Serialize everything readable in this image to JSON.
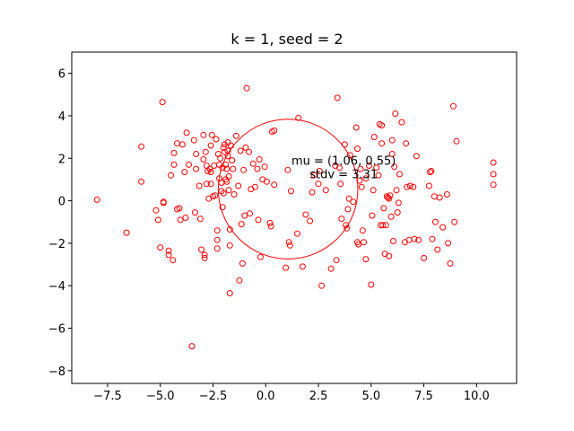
{
  "chart_data": {
    "type": "scatter",
    "title": "k = 1, seed = 2",
    "xlabel": "",
    "ylabel": "",
    "xlim": [
      -9.2,
      11.9
    ],
    "ylim": [
      -8.6,
      7.0
    ],
    "xticks": [
      -7.5,
      -5.0,
      -2.5,
      0.0,
      2.5,
      5.0,
      7.5,
      10.0
    ],
    "xtick_labels": [
      "−7.5",
      "−5.0",
      "−2.5",
      "0.0",
      "2.5",
      "5.0",
      "7.5",
      "10.0"
    ],
    "yticks": [
      -8,
      -6,
      -4,
      -2,
      0,
      2,
      4,
      6
    ],
    "ytick_labels": [
      "−8",
      "−6",
      "−4",
      "−2",
      "0",
      "2",
      "4",
      "6"
    ],
    "grid": false,
    "marker_color": "#ff0000",
    "annotation": {
      "line1": "mu = (1.06, 0.55)",
      "line2": "stdv = 3.31",
      "x": 1.06,
      "y": 0.55
    },
    "circle": {
      "cx": 1.06,
      "cy": 0.55,
      "r": 3.31,
      "color": "#ff0000"
    },
    "points": [
      [
        -8.0,
        0.05
      ],
      [
        -6.6,
        -1.5
      ],
      [
        -5.9,
        2.55
      ],
      [
        -5.9,
        0.9
      ],
      [
        -5.2,
        -0.45
      ],
      [
        -5.1,
        -0.9
      ],
      [
        -5.0,
        -2.2
      ],
      [
        -4.9,
        4.65
      ],
      [
        -4.85,
        -0.05
      ],
      [
        -4.85,
        -0.1
      ],
      [
        -4.6,
        -2.35
      ],
      [
        -4.6,
        -2.55
      ],
      [
        -4.5,
        1.2
      ],
      [
        -4.4,
        -2.8
      ],
      [
        -4.35,
        1.7
      ],
      [
        -4.35,
        2.25
      ],
      [
        -4.2,
        2.7
      ],
      [
        -4.2,
        -0.4
      ],
      [
        -4.1,
        -0.35
      ],
      [
        -4.05,
        -0.9
      ],
      [
        -3.95,
        2.65
      ],
      [
        -3.85,
        1.35
      ],
      [
        -3.8,
        -0.8
      ],
      [
        -3.75,
        3.2
      ],
      [
        -3.65,
        1.7
      ],
      [
        -3.5,
        -6.85
      ],
      [
        -3.4,
        2.85
      ],
      [
        -3.35,
        -0.55
      ],
      [
        -3.3,
        1.5
      ],
      [
        -3.3,
        2.2
      ],
      [
        -3.15,
        0.7
      ],
      [
        -3.1,
        -0.85
      ],
      [
        -3.05,
        -2.3
      ],
      [
        -2.95,
        3.1
      ],
      [
        -2.95,
        1.95
      ],
      [
        -2.9,
        -2.55
      ],
      [
        -2.9,
        -2.7
      ],
      [
        -2.85,
        2.3
      ],
      [
        -2.8,
        1.65
      ],
      [
        -2.8,
        0.8
      ],
      [
        -2.75,
        1.4
      ],
      [
        -2.7,
        0.1
      ],
      [
        -2.65,
        1.5
      ],
      [
        -2.6,
        2.6
      ],
      [
        -2.6,
        1.35
      ],
      [
        -2.6,
        0.8
      ],
      [
        -2.55,
        3.1
      ],
      [
        -2.5,
        0.2
      ],
      [
        -2.45,
        1.65
      ],
      [
        -2.4,
        0.25
      ],
      [
        -2.35,
        2.9
      ],
      [
        -2.3,
        -1.4
      ],
      [
        -2.3,
        -1.85
      ],
      [
        -2.3,
        -2.25
      ],
      [
        -2.25,
        2.2
      ],
      [
        -2.2,
        1.7
      ],
      [
        -2.2,
        1.05
      ],
      [
        -2.15,
        2.0
      ],
      [
        -2.1,
        0.85
      ],
      [
        -2.1,
        0.45
      ],
      [
        -2.05,
        1.55
      ],
      [
        -2.05,
        -0.3
      ],
      [
        -2.0,
        2.5
      ],
      [
        -2.0,
        0.35
      ],
      [
        -1.95,
        2.65
      ],
      [
        -1.95,
        2.3
      ],
      [
        -1.9,
        1.7
      ],
      [
        -1.9,
        1.0
      ],
      [
        -1.85,
        1.5
      ],
      [
        -1.85,
        0.9
      ],
      [
        -1.8,
        2.75
      ],
      [
        -1.8,
        2.35
      ],
      [
        -1.8,
        2.1
      ],
      [
        -1.75,
        1.15
      ],
      [
        -1.75,
        0.5
      ],
      [
        -1.7,
        -1.35
      ],
      [
        -1.7,
        -2.1
      ],
      [
        -1.7,
        -4.35
      ],
      [
        -1.65,
        2.6
      ],
      [
        -1.6,
        1.9
      ],
      [
        -1.55,
        1.5
      ],
      [
        -1.5,
        0.3
      ],
      [
        -1.4,
        3.05
      ],
      [
        -1.3,
        0.7
      ],
      [
        -1.25,
        -3.75
      ],
      [
        -1.2,
        2.35
      ],
      [
        -1.15,
        -1.1
      ],
      [
        -1.1,
        -2.95
      ],
      [
        -1.05,
        1.45
      ],
      [
        -1.0,
        -0.7
      ],
      [
        -0.95,
        2.5
      ],
      [
        -0.9,
        5.3
      ],
      [
        -0.8,
        2.3
      ],
      [
        -0.75,
        -0.6
      ],
      [
        -0.7,
        0.55
      ],
      [
        -0.6,
        1.75
      ],
      [
        -0.5,
        0.65
      ],
      [
        -0.4,
        1.5
      ],
      [
        -0.35,
        -0.9
      ],
      [
        -0.3,
        1.95
      ],
      [
        -0.25,
        -2.65
      ],
      [
        -0.15,
        1.0
      ],
      [
        -0.05,
        1.6
      ],
      [
        0.05,
        0.9
      ],
      [
        0.2,
        -1.05
      ],
      [
        0.25,
        -1.2
      ],
      [
        0.3,
        3.25
      ],
      [
        0.4,
        0.75
      ],
      [
        0.4,
        3.3
      ],
      [
        0.95,
        -3.15
      ],
      [
        1.05,
        1.45
      ],
      [
        1.1,
        -1.95
      ],
      [
        1.15,
        -2.1
      ],
      [
        1.2,
        0.45
      ],
      [
        1.5,
        -1.55
      ],
      [
        1.55,
        3.9
      ],
      [
        1.75,
        -3.1
      ],
      [
        1.9,
        -0.65
      ],
      [
        2.1,
        -0.95
      ],
      [
        2.2,
        0.4
      ],
      [
        2.3,
        1.2
      ],
      [
        2.5,
        0.8
      ],
      [
        2.55,
        1.4
      ],
      [
        2.65,
        -4.0
      ],
      [
        2.85,
        0.5
      ],
      [
        3.1,
        -3.2
      ],
      [
        3.3,
        1.65
      ],
      [
        3.35,
        -2.8
      ],
      [
        3.4,
        4.85
      ],
      [
        3.5,
        1.55
      ],
      [
        3.55,
        0.8
      ],
      [
        3.6,
        -0.85
      ],
      [
        3.75,
        2.65
      ],
      [
        3.8,
        -1.15
      ],
      [
        3.85,
        -1.3
      ],
      [
        3.9,
        -0.4
      ],
      [
        3.95,
        0.1
      ],
      [
        4.0,
        2.15
      ],
      [
        4.15,
        -0.05
      ],
      [
        4.3,
        3.45
      ],
      [
        4.35,
        2.45
      ],
      [
        4.35,
        -1.95
      ],
      [
        4.4,
        -2.05
      ],
      [
        4.45,
        0.95
      ],
      [
        4.5,
        1.5
      ],
      [
        4.55,
        0.65
      ],
      [
        4.6,
        -1.4
      ],
      [
        4.65,
        -1.95
      ],
      [
        4.75,
        1.05
      ],
      [
        4.75,
        -2.75
      ],
      [
        4.9,
        1.65
      ],
      [
        5.0,
        -3.95
      ],
      [
        5.05,
        -0.7
      ],
      [
        5.1,
        0.5
      ],
      [
        5.15,
        3.0
      ],
      [
        5.25,
        1.55
      ],
      [
        5.35,
        1.2
      ],
      [
        5.4,
        3.6
      ],
      [
        5.45,
        -1.15
      ],
      [
        5.5,
        3.55
      ],
      [
        5.5,
        2.7
      ],
      [
        5.55,
        -1.15
      ],
      [
        5.6,
        -0.35
      ],
      [
        5.65,
        -2.5
      ],
      [
        5.7,
        -1.15
      ],
      [
        5.75,
        0.2
      ],
      [
        5.8,
        0.15
      ],
      [
        5.85,
        0.1
      ],
      [
        5.85,
        -2.6
      ],
      [
        5.9,
        0.25
      ],
      [
        5.95,
        -0.75
      ],
      [
        6.0,
        2.85
      ],
      [
        6.0,
        2.2
      ],
      [
        6.05,
        -1.9
      ],
      [
        6.1,
        1.6
      ],
      [
        6.15,
        4.1
      ],
      [
        6.2,
        0.5
      ],
      [
        6.25,
        -0.55
      ],
      [
        6.3,
        -0.1
      ],
      [
        6.35,
        1.25
      ],
      [
        6.45,
        3.7
      ],
      [
        6.6,
        -1.95
      ],
      [
        6.65,
        2.7
      ],
      [
        6.7,
        0.65
      ],
      [
        6.8,
        -1.85
      ],
      [
        6.85,
        0.7
      ],
      [
        7.0,
        0.65
      ],
      [
        7.05,
        -1.8
      ],
      [
        7.15,
        2.1
      ],
      [
        7.25,
        -1.85
      ],
      [
        7.5,
        -2.7
      ],
      [
        7.75,
        0.7
      ],
      [
        7.8,
        1.35
      ],
      [
        7.85,
        1.4
      ],
      [
        7.9,
        -1.8
      ],
      [
        8.0,
        0.2
      ],
      [
        8.05,
        -1.0
      ],
      [
        8.15,
        -2.3
      ],
      [
        8.25,
        0.15
      ],
      [
        8.4,
        -1.25
      ],
      [
        8.6,
        0.3
      ],
      [
        8.65,
        -2.0
      ],
      [
        8.75,
        -2.95
      ],
      [
        8.9,
        4.45
      ],
      [
        8.95,
        -1.0
      ],
      [
        9.05,
        2.8
      ],
      [
        10.8,
        1.8
      ],
      [
        10.8,
        1.25
      ],
      [
        10.8,
        0.75
      ]
    ]
  }
}
